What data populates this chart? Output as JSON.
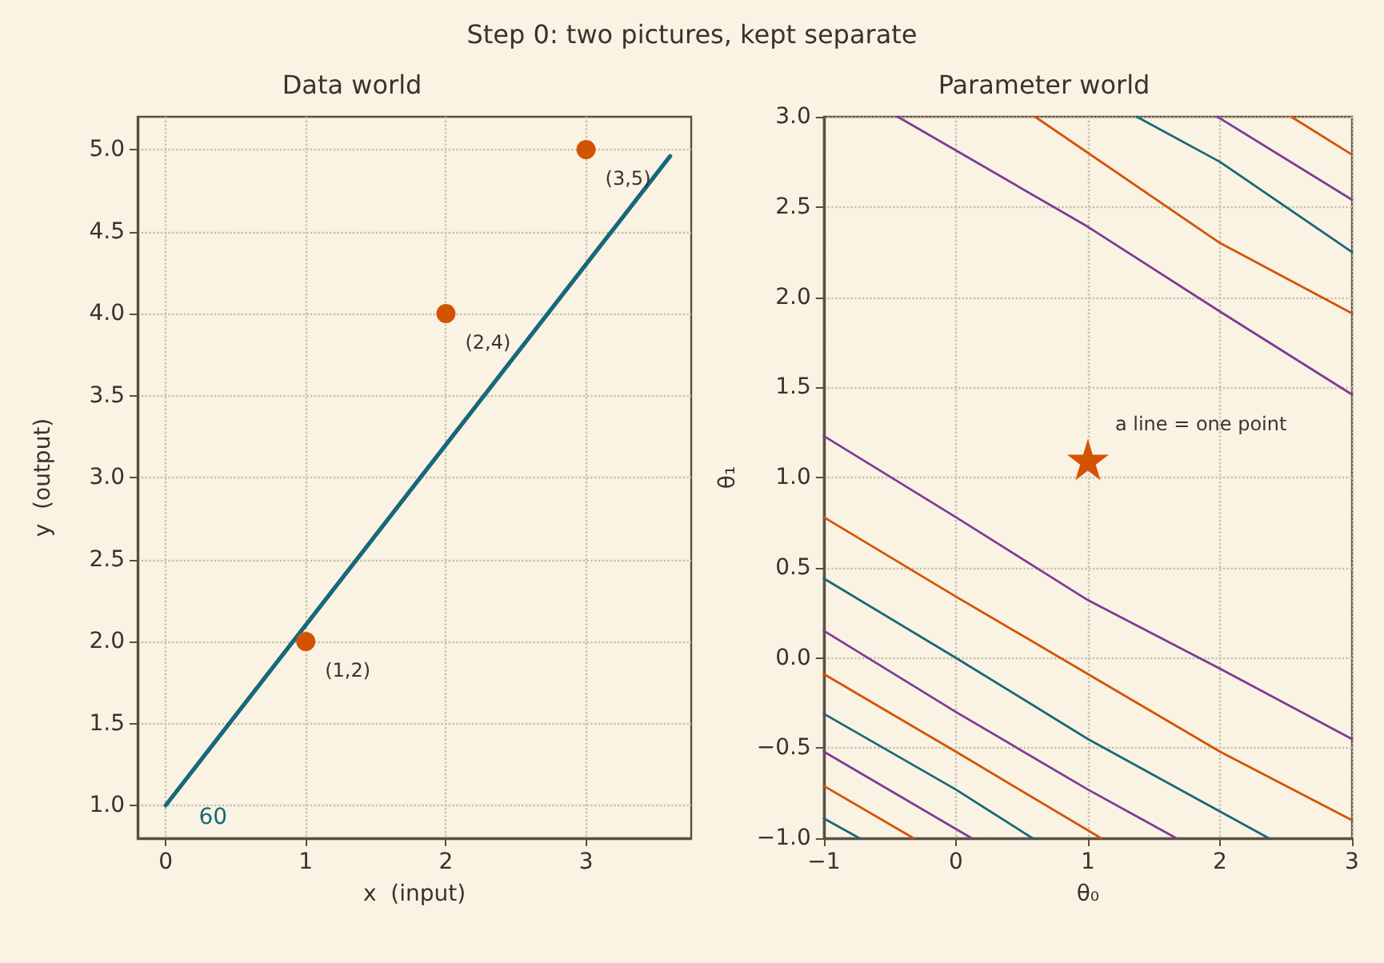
{
  "chart_data": [
    {
      "type": "scatter",
      "title": "Data world",
      "xlabel": "x  (input)",
      "ylabel": "y  (output)",
      "annotations": [
        "Step 0: two pictures, kept separate",
        {
          "text": "(1,2)",
          "x": 1,
          "y": 2
        },
        {
          "text": "(2,4)",
          "x": 2,
          "y": 4
        },
        {
          "text": "(3,5)",
          "x": 3,
          "y": 5
        },
        {
          "text": "60",
          "x": 0.1,
          "y": 1.11
        }
      ],
      "series": [
        {
          "color": "#d35400",
          "x": [
            1,
            2,
            3
          ],
          "values": [
            2,
            4,
            5
          ],
          "marker": "circle"
        },
        {
          "type": "line",
          "color": "#17687a",
          "x": [
            0,
            3.6
          ],
          "values": [
            1,
            4.96
          ],
          "marker": "none"
        }
      ],
      "xlim": [
        -0.2,
        3.75
      ],
      "xticks": [
        0,
        1,
        2,
        3
      ],
      "ylim": [
        0.8,
        5.2
      ],
      "yticks": [
        {
          "value": 1,
          "label": "1.0"
        },
        {
          "value": 1.5,
          "label": "1.5"
        },
        {
          "value": 2,
          "label": "2.0"
        },
        {
          "value": 2.5,
          "label": "2.5"
        },
        {
          "value": 3,
          "label": "3.0"
        },
        {
          "value": 3.5,
          "label": "3.5"
        },
        {
          "value": 4,
          "label": "4.0"
        },
        {
          "value": 4.5,
          "label": "4.5"
        },
        {
          "value": 5,
          "label": "5.0"
        }
      ],
      "grid": true
    },
    {
      "type": "line",
      "title": "Parameter world",
      "xlabel": "θ₀",
      "ylabel": "θ₁",
      "annotations": [
        {
          "text": "a line = one point",
          "x": 1,
          "y": 1.1
        }
      ],
      "series": [
        {
          "color": "#7d3c98",
          "x": [
            -0.44,
            1,
            2,
            3
          ],
          "values": [
            3,
            2.39,
            1.92,
            1.46
          ]
        },
        {
          "color": "#d35400",
          "x": [
            0.6,
            2,
            3
          ],
          "values": [
            3,
            2.3,
            1.91
          ]
        },
        {
          "color": "#17687a",
          "x": [
            1.37,
            2,
            3
          ],
          "values": [
            3,
            2.75,
            2.25
          ]
        },
        {
          "color": "#7d3c98",
          "x": [
            1.98,
            3
          ],
          "values": [
            3,
            2.54
          ]
        },
        {
          "color": "#d35400",
          "x": [
            2.54,
            3
          ],
          "values": [
            3,
            2.79
          ]
        },
        {
          "color": "#7d3c98",
          "x": [
            -1,
            0,
            1,
            2,
            3
          ],
          "values": [
            1.23,
            0.78,
            0.32,
            -0.06,
            -0.45
          ]
        },
        {
          "color": "#d35400",
          "x": [
            -1,
            0,
            1,
            2,
            3
          ],
          "values": [
            0.78,
            0.34,
            -0.09,
            -0.52,
            -0.9
          ]
        },
        {
          "color": "#17687a",
          "x": [
            -1,
            0,
            1,
            2.37
          ],
          "values": [
            0.44,
            0,
            -0.45,
            -1
          ]
        },
        {
          "color": "#7d3c98",
          "x": [
            -1,
            0,
            1,
            1.67
          ],
          "values": [
            0.15,
            -0.3,
            -0.73,
            -1
          ]
        },
        {
          "color": "#d35400",
          "x": [
            -1,
            0,
            1.1
          ],
          "values": [
            -0.09,
            -0.52,
            -1
          ]
        },
        {
          "color": "#17687a",
          "x": [
            -1,
            0,
            0.58
          ],
          "values": [
            -0.31,
            -0.73,
            -1
          ]
        },
        {
          "color": "#7d3c98",
          "x": [
            -1,
            0.12
          ],
          "values": [
            -0.52,
            -1
          ]
        },
        {
          "color": "#d35400",
          "x": [
            -1,
            -0.32
          ],
          "values": [
            -0.71,
            -1
          ]
        },
        {
          "color": "#17687a",
          "x": [
            -1,
            -0.73
          ],
          "values": [
            -0.89,
            -1
          ]
        },
        {
          "type": "scatter",
          "color": "#d35400",
          "x": [
            1
          ],
          "values": [
            1.1
          ],
          "marker": "star"
        }
      ],
      "xlim": [
        -1,
        3
      ],
      "xticks": [
        {
          "value": -1,
          "label": "−1"
        },
        0,
        1,
        2,
        3
      ],
      "ylim": [
        -1,
        3
      ],
      "yticks": [
        {
          "value": -1,
          "label": "−1.0"
        },
        {
          "value": -0.5,
          "label": "−0.5"
        },
        {
          "value": 0,
          "label": "0.0"
        },
        {
          "value": 0.5,
          "label": "0.5"
        },
        {
          "value": 1,
          "label": "1.0"
        },
        {
          "value": 1.5,
          "label": "1.5"
        },
        {
          "value": 2,
          "label": "2.0"
        },
        {
          "value": 2.5,
          "label": "2.5"
        },
        {
          "value": 3,
          "label": "3.0"
        }
      ],
      "marker": "none",
      "grid": true
    }
  ]
}
